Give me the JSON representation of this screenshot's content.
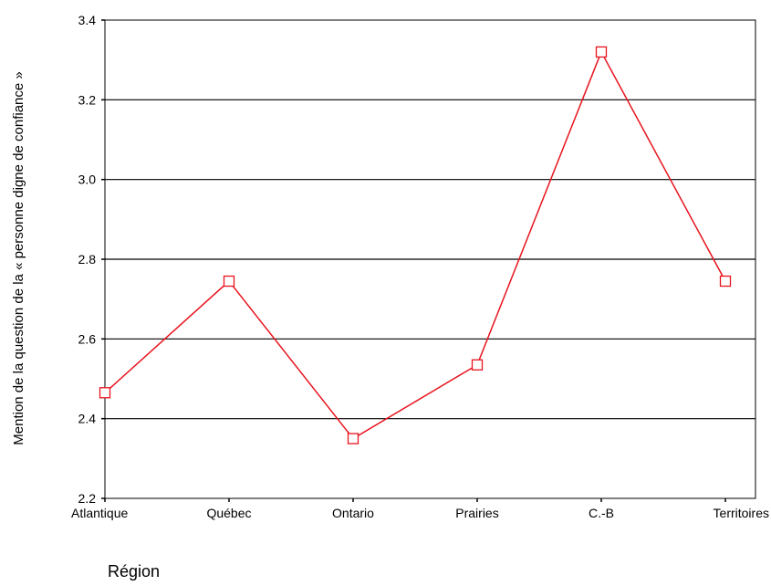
{
  "chart_data": {
    "type": "line",
    "title": "",
    "xlabel": "Région",
    "ylabel": "Mention de la question de la « personne digne de confiance »",
    "categories": [
      "Atlantique",
      "Québec",
      "Ontario",
      "Prairies",
      "C.-B",
      "Territoires"
    ],
    "series": [
      {
        "values": [
          2.465,
          2.745,
          2.35,
          2.535,
          3.32,
          2.745
        ]
      }
    ],
    "ylim": [
      2.2,
      3.4
    ],
    "yticks": [
      "2.2",
      "2.4",
      "2.6",
      "2.8",
      "3.0",
      "3.2",
      "3.4"
    ],
    "grid": true,
    "legend": "none",
    "colors": {
      "line": "#e8141e",
      "marker": "#e8141e",
      "grid": "#000000",
      "axis": "#000000"
    }
  }
}
